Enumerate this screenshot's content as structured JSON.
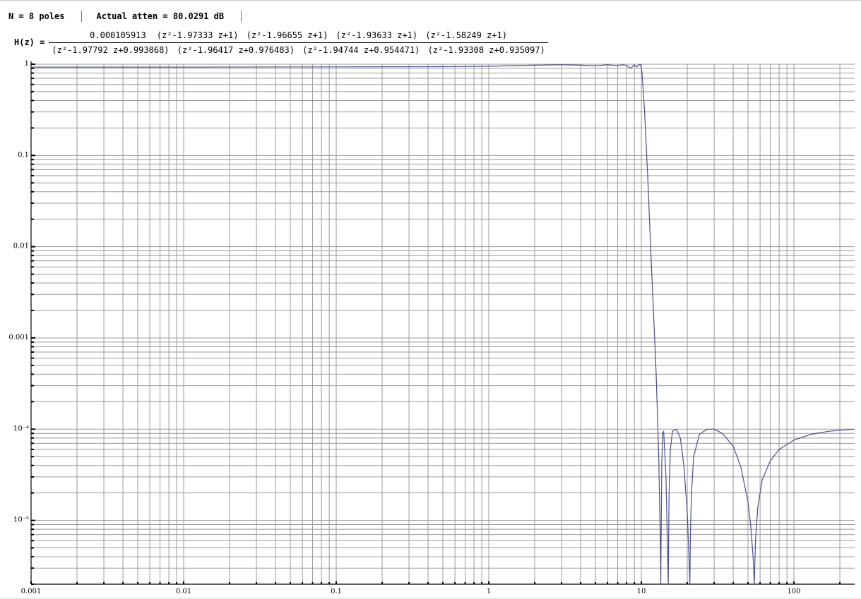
{
  "header": {
    "poles_label": "N = 8 poles",
    "atten_label": "Actual atten = 80.0291 dB"
  },
  "transfer_function": {
    "label": "H(z) =",
    "numerator": {
      "gain": "0.000105913",
      "factors": [
        "(z²-1.97333 z+1)",
        "(z²-1.96655 z+1)",
        "(z²-1.93633 z+1)",
        "(z²-1.58249 z+1)"
      ]
    },
    "denominator": {
      "factors": [
        "(z²-1.97792 z+0.993068)",
        "(z²-1.96417 z+0.976483)",
        "(z²-1.94744 z+0.954471)",
        "(z²-1.93308 z+0.935097)"
      ]
    }
  },
  "chart_data": {
    "type": "line",
    "x_scale": "log",
    "y_scale": "log",
    "xlim": [
      0.001,
      250
    ],
    "ylim": [
      2e-06,
      1.0
    ],
    "grid": true,
    "x_tick_labels": [
      "0.001",
      "0.01",
      "0.1",
      "1",
      "10",
      "100"
    ],
    "x_tick_values": [
      0.001,
      0.01,
      0.1,
      1,
      10,
      100
    ],
    "y_tick_labels": [
      "1",
      "0.1",
      "0.01",
      "0.001",
      "10⁻⁴",
      "10⁻⁵"
    ],
    "y_tick_values": [
      1,
      0.1,
      0.01,
      0.001,
      0.0001,
      1e-05
    ],
    "line_color": "#4b4e8f",
    "series": [
      {
        "x": [
          0.001,
          0.01,
          0.1,
          0.5,
          1,
          2,
          3,
          4,
          5,
          6,
          7,
          7.5,
          8,
          8.5,
          9,
          9.3,
          9.6,
          9.9,
          10.1,
          10.5,
          11,
          11.5,
          12,
          12.5,
          13,
          13.3,
          13.4,
          13.6,
          13.8,
          14,
          14.5,
          14.8,
          15,
          15.2,
          15.5,
          16,
          17,
          18,
          19,
          20,
          20.5,
          20.8,
          21,
          21.3,
          22,
          24,
          27,
          30,
          34,
          40,
          45,
          50,
          52,
          54,
          55,
          56,
          58,
          62,
          70,
          80,
          100,
          130,
          170,
          250
        ],
        "y": [
          0.93,
          0.93,
          0.935,
          0.94,
          0.95,
          0.975,
          0.985,
          0.975,
          0.96,
          0.985,
          0.96,
          0.985,
          0.97,
          0.9,
          0.985,
          0.93,
          0.98,
          0.99,
          0.8,
          0.3,
          0.06,
          0.01,
          0.002,
          0.0004,
          5e-05,
          6.5e-06,
          2e-06,
          4e-05,
          9e-05,
          9.5e-05,
          3e-05,
          6e-06,
          2e-06,
          2e-05,
          6e-05,
          9.5e-05,
          0.0001,
          8e-05,
          4e-05,
          1.2e-05,
          4e-06,
          2e-06,
          8e-06,
          2e-05,
          5e-05,
          8.8e-05,
          0.0001,
          0.0001,
          9e-05,
          6.5e-05,
          3.8e-05,
          1.6e-05,
          9e-06,
          4e-06,
          2e-06,
          6e-06,
          1.4e-05,
          2.8e-05,
          4.5e-05,
          6e-05,
          7.6e-05,
          8.8e-05,
          9.5e-05,
          0.0001
        ]
      }
    ]
  }
}
